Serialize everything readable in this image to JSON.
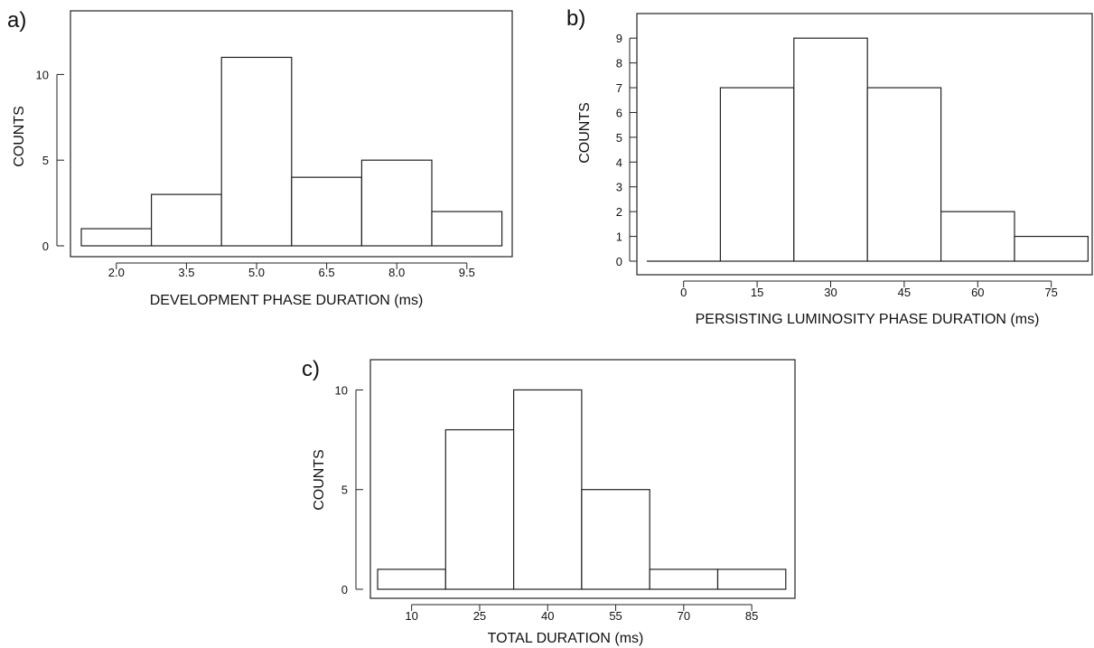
{
  "chart_data": [
    {
      "panel_label": "a)",
      "type": "bar",
      "categories": [
        "2.0",
        "3.5",
        "5.0",
        "6.5",
        "8.0",
        "9.5"
      ],
      "values": [
        1,
        3,
        11,
        4,
        5,
        2
      ],
      "x_ticks": [
        "2.0",
        "3.5",
        "5.0",
        "6.5",
        "8.0",
        "9.5"
      ],
      "y_ticks": [
        "0",
        "5",
        "10"
      ],
      "xlabel": "DEVELOPMENT PHASE DURATION (ms)",
      "ylabel": "COUNTS",
      "title": "",
      "ylim": [
        0,
        12
      ],
      "grid": false
    },
    {
      "panel_label": "b)",
      "type": "bar",
      "categories": [
        "0",
        "15",
        "30",
        "45",
        "60",
        "75"
      ],
      "values": [
        0,
        7,
        9,
        7,
        2,
        1
      ],
      "x_ticks": [
        "0",
        "15",
        "30",
        "45",
        "60",
        "75"
      ],
      "y_ticks": [
        "0",
        "1",
        "2",
        "3",
        "4",
        "5",
        "6",
        "7",
        "8",
        "9"
      ],
      "xlabel": "PERSISTING LUMINOSITY PHASE DURATION (ms)",
      "ylabel": "COUNTS",
      "title": "",
      "ylim": [
        0,
        9.5
      ],
      "grid": false
    },
    {
      "panel_label": "c)",
      "type": "bar",
      "categories": [
        "10",
        "25",
        "40",
        "55",
        "70",
        "85"
      ],
      "values": [
        1,
        8,
        10,
        5,
        1,
        1
      ],
      "x_ticks": [
        "10",
        "25",
        "40",
        "55",
        "70",
        "85"
      ],
      "y_ticks": [
        "0",
        "5",
        "10"
      ],
      "xlabel": "TOTAL DURATION (ms)",
      "ylabel": "COUNTS",
      "title": "",
      "ylim": [
        0,
        10.7
      ],
      "grid": false
    }
  ]
}
